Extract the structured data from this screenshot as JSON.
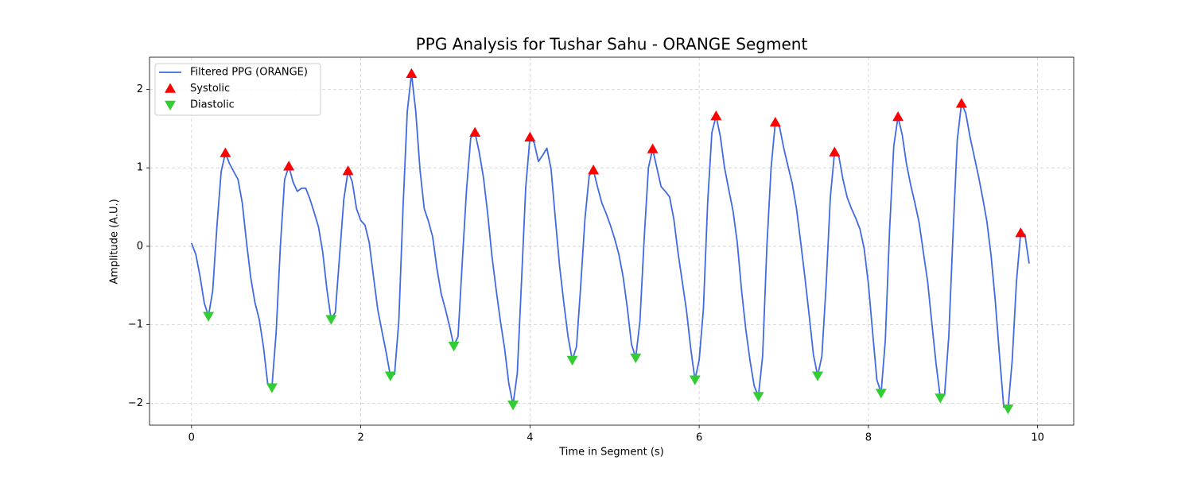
{
  "chart_data": {
    "type": "line",
    "title": "PPG Analysis for Tushar Sahu - ORANGE Segment",
    "x_label": "Time in Segment (s)",
    "y_label": "Amplitude (A.U.)",
    "xlim": [
      -0.4965,
      10.4265
    ],
    "ylim": [
      -2.28,
      2.41
    ],
    "xticks": [
      0,
      2,
      4,
      6,
      8,
      10
    ],
    "yticks": [
      {
        "value": -2,
        "label": "−2"
      },
      {
        "value": -1,
        "label": "−1"
      },
      0,
      1,
      2
    ],
    "grid": true,
    "legend": "upper left",
    "series": [
      {
        "name": "Filtered PPG (ORANGE)",
        "color": "#4169e1",
        "x": [
          0,
          0.05,
          0.1,
          0.15,
          0.2,
          0.25,
          0.3,
          0.35,
          0.4,
          0.45,
          0.5,
          0.55,
          0.6,
          0.65,
          0.7,
          0.75,
          0.8,
          0.85,
          0.9,
          0.95,
          1,
          1.05,
          1.1,
          1.15,
          1.2,
          1.25,
          1.3,
          1.35,
          1.4,
          1.45,
          1.5,
          1.55,
          1.6,
          1.65,
          1.7,
          1.75,
          1.8,
          1.85,
          1.9,
          1.95,
          2,
          2.05,
          2.1,
          2.15,
          2.2,
          2.25,
          2.3,
          2.35,
          2.4,
          2.45,
          2.5,
          2.55,
          2.6,
          2.65,
          2.7,
          2.75,
          2.8,
          2.85,
          2.9,
          2.95,
          3,
          3.05,
          3.1,
          3.15,
          3.2,
          3.25,
          3.3,
          3.35,
          3.4,
          3.45,
          3.5,
          3.55,
          3.6,
          3.65,
          3.7,
          3.75,
          3.8,
          3.85,
          3.9,
          3.95,
          4,
          4.05,
          4.1,
          4.15,
          4.2,
          4.25,
          4.3,
          4.35,
          4.4,
          4.45,
          4.5,
          4.55,
          4.6,
          4.65,
          4.7,
          4.75,
          4.8,
          4.85,
          4.9,
          4.95,
          5,
          5.05,
          5.1,
          5.15,
          5.2,
          5.25,
          5.3,
          5.35,
          5.4,
          5.45,
          5.5,
          5.55,
          5.6,
          5.65,
          5.7,
          5.75,
          5.8,
          5.85,
          5.9,
          5.95,
          6,
          6.05,
          6.1,
          6.15,
          6.2,
          6.25,
          6.3,
          6.35,
          6.4,
          6.45,
          6.5,
          6.55,
          6.6,
          6.65,
          6.7,
          6.75,
          6.8,
          6.85,
          6.9,
          6.95,
          7,
          7.05,
          7.1,
          7.15,
          7.2,
          7.25,
          7.3,
          7.35,
          7.4,
          7.45,
          7.5,
          7.55,
          7.6,
          7.65,
          7.7,
          7.75,
          7.8,
          7.85,
          7.9,
          7.95,
          8,
          8.05,
          8.1,
          8.15,
          8.2,
          8.25,
          8.3,
          8.35,
          8.4,
          8.45,
          8.5,
          8.55,
          8.6,
          8.65,
          8.7,
          8.75,
          8.8,
          8.85,
          8.9,
          8.95,
          9,
          9.05,
          9.1,
          9.15,
          9.2,
          9.25,
          9.3,
          9.35,
          9.4,
          9.45,
          9.5,
          9.55,
          9.6,
          9.65,
          9.7,
          9.75,
          9.8,
          9.85,
          9.9
        ],
        "values": [
          0.04,
          -0.1,
          -0.38,
          -0.72,
          -0.89,
          -0.57,
          0.25,
          0.95,
          1.19,
          1.05,
          0.95,
          0.85,
          0.55,
          0.05,
          -0.4,
          -0.72,
          -0.93,
          -1.28,
          -1.75,
          -1.8,
          -1.1,
          0.0,
          0.85,
          1.02,
          0.82,
          0.7,
          0.74,
          0.74,
          0.6,
          0.43,
          0.25,
          -0.07,
          -0.55,
          -0.93,
          -0.84,
          -0.12,
          0.6,
          0.96,
          0.82,
          0.48,
          0.33,
          0.27,
          0.05,
          -0.38,
          -0.8,
          -1.08,
          -1.35,
          -1.65,
          -1.63,
          -0.95,
          0.5,
          1.72,
          2.2,
          1.72,
          0.98,
          0.48,
          0.32,
          0.12,
          -0.28,
          -0.6,
          -0.8,
          -1.02,
          -1.27,
          -1.15,
          -0.2,
          0.72,
          1.38,
          1.45,
          1.2,
          0.88,
          0.42,
          -0.12,
          -0.55,
          -0.95,
          -1.3,
          -1.75,
          -2.02,
          -1.62,
          -0.45,
          0.75,
          1.39,
          1.32,
          1.08,
          1.16,
          1.25,
          0.98,
          0.35,
          -0.25,
          -0.72,
          -1.15,
          -1.45,
          -1.28,
          -0.5,
          0.35,
          0.9,
          0.97,
          0.75,
          0.55,
          0.42,
          0.27,
          0.1,
          -0.1,
          -0.38,
          -0.78,
          -1.25,
          -1.42,
          -0.95,
          0.1,
          1.0,
          1.24,
          1.0,
          0.76,
          0.7,
          0.63,
          0.35,
          -0.08,
          -0.45,
          -0.82,
          -1.3,
          -1.7,
          -1.45,
          -0.8,
          0.55,
          1.45,
          1.66,
          1.4,
          1.0,
          0.72,
          0.45,
          0.05,
          -0.55,
          -1.05,
          -1.45,
          -1.78,
          -1.91,
          -1.4,
          0.0,
          1.0,
          1.58,
          1.52,
          1.25,
          1.02,
          0.8,
          0.48,
          0.05,
          -0.4,
          -0.88,
          -1.38,
          -1.65,
          -1.4,
          -0.5,
          0.62,
          1.2,
          1.15,
          0.85,
          0.62,
          0.48,
          0.36,
          0.22,
          -0.03,
          -0.48,
          -1.1,
          -1.7,
          -1.87,
          -1.2,
          0.2,
          1.28,
          1.65,
          1.42,
          1.05,
          0.78,
          0.55,
          0.3,
          -0.08,
          -0.45,
          -0.98,
          -1.5,
          -1.93,
          -1.9,
          -1.15,
          0.15,
          1.35,
          1.82,
          1.7,
          1.4,
          1.15,
          0.9,
          0.62,
          0.32,
          -0.12,
          -0.7,
          -1.4,
          -2.05,
          -2.07,
          -1.45,
          -0.45,
          0.17,
          0.15,
          -0.22
        ]
      },
      {
        "name": "Systolic",
        "color": "#ff0000",
        "marker": "^",
        "x": [
          0.4,
          1.15,
          1.85,
          2.6,
          3.35,
          4,
          4.75,
          5.45,
          6.2,
          6.9,
          7.6,
          8.35,
          9.1,
          9.8
        ],
        "values": [
          1.19,
          1.02,
          0.96,
          2.2,
          1.45,
          1.39,
          0.97,
          1.24,
          1.66,
          1.58,
          1.2,
          1.65,
          1.82,
          0.17
        ]
      },
      {
        "name": "Diastolic",
        "color": "#32cd32",
        "marker": "v",
        "x": [
          0.2,
          0.95,
          1.65,
          2.35,
          3.1,
          3.8,
          4.5,
          5.25,
          5.95,
          6.7,
          7.4,
          8.15,
          8.85,
          9.65
        ],
        "values": [
          -0.89,
          -1.8,
          -0.93,
          -1.65,
          -1.27,
          -2.02,
          -1.45,
          -1.42,
          -1.7,
          -1.91,
          -1.65,
          -1.87,
          -1.93,
          -2.07
        ]
      }
    ]
  }
}
